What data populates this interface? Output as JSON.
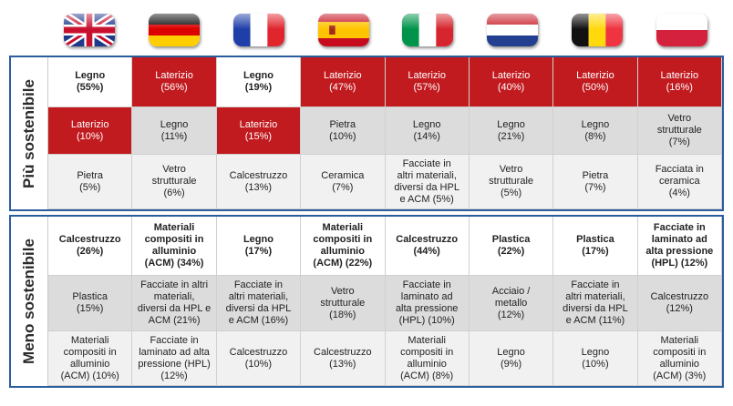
{
  "flags": [
    "uk-flag-icon",
    "germany-flag-icon",
    "france-flag-icon",
    "spain-flag-icon",
    "italy-flag-icon",
    "netherlands-flag-icon",
    "belgium-flag-icon",
    "poland-flag-icon"
  ],
  "colors": {
    "highlight_red": "#c11b20",
    "border_blue": "#2a5d9e",
    "row_grey": "#dcdcdc"
  },
  "top": {
    "label": "Più sostenibile",
    "rows": [
      [
        {
          "text": "Legno\n(55%)",
          "style": "white bold"
        },
        {
          "text": "Laterizio\n(56%)",
          "style": "red"
        },
        {
          "text": "Legno\n(19%)",
          "style": "white bold"
        },
        {
          "text": "Laterizio\n(47%)",
          "style": "red"
        },
        {
          "text": "Laterizio\n(57%)",
          "style": "red"
        },
        {
          "text": "Laterizio\n(40%)",
          "style": "red"
        },
        {
          "text": "Laterizio\n(50%)",
          "style": "red"
        },
        {
          "text": "Laterizio\n(16%)",
          "style": "red"
        }
      ],
      [
        {
          "text": "Laterizio\n(10%)",
          "style": "red"
        },
        {
          "text": "Legno\n(11%)",
          "style": "grey"
        },
        {
          "text": "Laterizio\n(15%)",
          "style": "red"
        },
        {
          "text": "Pietra\n(10%)",
          "style": "grey"
        },
        {
          "text": "Legno\n(14%)",
          "style": "grey"
        },
        {
          "text": "Legno\n(21%)",
          "style": "grey"
        },
        {
          "text": "Legno\n(8%)",
          "style": "grey"
        },
        {
          "text": "Vetro\nstrutturale\n(7%)",
          "style": "grey"
        }
      ],
      [
        {
          "text": "Pietra\n(5%)",
          "style": "light"
        },
        {
          "text": "Vetro\nstrutturale\n(6%)",
          "style": "light"
        },
        {
          "text": "Calcestruzzo\n(13%)",
          "style": "light"
        },
        {
          "text": "Ceramica\n(7%)",
          "style": "light"
        },
        {
          "text": "Facciate in\naltri materiali,\ndiversi da HPL\ne ACM (5%)",
          "style": "light"
        },
        {
          "text": "Vetro\nstrutturale\n(5%)",
          "style": "light"
        },
        {
          "text": "Pietra\n(7%)",
          "style": "light"
        },
        {
          "text": "Facciata in\nceramica\n(4%)",
          "style": "light"
        }
      ]
    ]
  },
  "bottom": {
    "label": "Meno sostenibile",
    "rows": [
      [
        {
          "text": "Calcestruzzo\n(26%)",
          "style": "white bold"
        },
        {
          "text": "Materiali\ncompositi in\nalluminio\n(ACM) (34%)",
          "style": "white bold"
        },
        {
          "text": "Legno\n(17%)",
          "style": "white bold"
        },
        {
          "text": "Materiali\ncompositi in\nalluminio\n(ACM) (22%)",
          "style": "white bold"
        },
        {
          "text": "Calcestruzzo\n(44%)",
          "style": "white bold"
        },
        {
          "text": "Plastica\n(22%)",
          "style": "white bold"
        },
        {
          "text": "Plastica\n(17%)",
          "style": "white bold"
        },
        {
          "text": "Facciate in\nlaminato ad\nalta pressione\n(HPL) (12%)",
          "style": "white bold"
        }
      ],
      [
        {
          "text": "Plastica\n(15%)",
          "style": "grey"
        },
        {
          "text": "Facciate in altri\nmateriali,\ndiversi da HPL e\nACM (21%)",
          "style": "grey"
        },
        {
          "text": "Facciate in\naltri materiali,\ndiversi da HPL\ne ACM (16%)",
          "style": "grey"
        },
        {
          "text": "Vetro\nstrutturale\n(18%)",
          "style": "grey"
        },
        {
          "text": "Facciate in\nlaminato ad\nalta pressione\n(HPL) (10%)",
          "style": "grey"
        },
        {
          "text": "Acciaio /\nmetallo\n(12%)",
          "style": "grey"
        },
        {
          "text": "Facciate in\naltri materiali,\ndiversi da HPL\ne ACM (11%)",
          "style": "grey"
        },
        {
          "text": "Calcestruzzo\n(12%)",
          "style": "grey"
        }
      ],
      [
        {
          "text": "Materiali\ncompositi in\nalluminio\n(ACM) (10%)",
          "style": "light"
        },
        {
          "text": "Facciate in\nlaminato ad alta\npressione (HPL)\n(12%)",
          "style": "light"
        },
        {
          "text": "Calcestruzzo\n(10%)",
          "style": "light"
        },
        {
          "text": "Calcestruzzo\n(13%)",
          "style": "light"
        },
        {
          "text": "Materiali\ncompositi in\nalluminio\n(ACM) (8%)",
          "style": "light"
        },
        {
          "text": "Legno\n(9%)",
          "style": "light"
        },
        {
          "text": "Legno\n(10%)",
          "style": "light"
        },
        {
          "text": "Materiali\ncompositi in\nalluminio\n(ACM) (3%)",
          "style": "light"
        }
      ]
    ]
  }
}
